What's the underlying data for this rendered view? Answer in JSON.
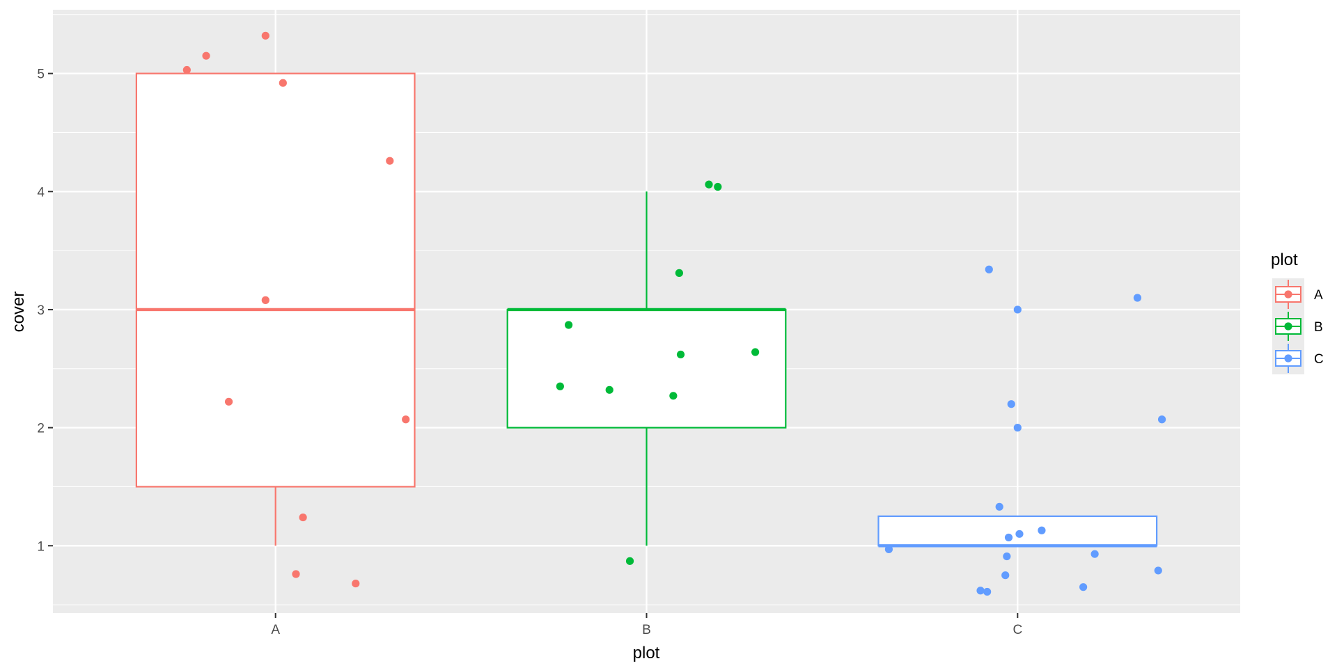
{
  "chart_data": {
    "type": "boxplot",
    "xlabel": "plot",
    "ylabel": "cover",
    "categories": [
      "A",
      "B",
      "C"
    ],
    "ylim": [
      0.43,
      5.54
    ],
    "yticks": [
      1,
      2,
      3,
      4,
      5
    ],
    "grid": true,
    "legend": {
      "title": "plot",
      "position": "right",
      "entries": [
        "A",
        "B",
        "C"
      ]
    },
    "colors": {
      "A": "#F8766D",
      "B": "#00BA38",
      "C": "#619CFF"
    },
    "boxes": [
      {
        "category": "A",
        "lower_whisker": 1,
        "q1": 1.5,
        "median": 3,
        "q3": 5,
        "upper_whisker": 5
      },
      {
        "category": "B",
        "lower_whisker": 1,
        "q1": 2,
        "median": 3,
        "q3": 3,
        "upper_whisker": 4
      },
      {
        "category": "C",
        "lower_whisker": 1,
        "q1": 1,
        "median": 1,
        "q3": 1.25,
        "upper_whisker": 1.25
      }
    ],
    "points": {
      "A": [
        {
          "x": 0.973,
          "y": 5.32
        },
        {
          "x": 0.813,
          "y": 5.15
        },
        {
          "x": 0.761,
          "y": 5.03
        },
        {
          "x": 1.02,
          "y": 4.92
        },
        {
          "x": 1.308,
          "y": 4.26
        },
        {
          "x": 0.973,
          "y": 3.08
        },
        {
          "x": 0.874,
          "y": 2.22
        },
        {
          "x": 1.351,
          "y": 2.07
        },
        {
          "x": 1.074,
          "y": 1.24
        },
        {
          "x": 1.055,
          "y": 0.76
        },
        {
          "x": 1.216,
          "y": 0.68
        }
      ],
      "B": [
        {
          "x": 2.168,
          "y": 4.06
        },
        {
          "x": 2.192,
          "y": 4.04
        },
        {
          "x": 2.088,
          "y": 3.31
        },
        {
          "x": 1.79,
          "y": 2.87
        },
        {
          "x": 2.293,
          "y": 2.64
        },
        {
          "x": 2.092,
          "y": 2.62
        },
        {
          "x": 1.767,
          "y": 2.35
        },
        {
          "x": 1.9,
          "y": 2.32
        },
        {
          "x": 2.072,
          "y": 2.27
        },
        {
          "x": 1.955,
          "y": 0.87
        }
      ],
      "C": [
        {
          "x": 2.923,
          "y": 3.34
        },
        {
          "x": 3.323,
          "y": 3.1
        },
        {
          "x": 3.0,
          "y": 3.0
        },
        {
          "x": 2.983,
          "y": 2.2
        },
        {
          "x": 3.389,
          "y": 2.07
        },
        {
          "x": 3.0,
          "y": 2.0
        },
        {
          "x": 2.951,
          "y": 1.33
        },
        {
          "x": 3.065,
          "y": 1.13
        },
        {
          "x": 3.005,
          "y": 1.1
        },
        {
          "x": 2.976,
          "y": 1.07
        },
        {
          "x": 2.653,
          "y": 0.97
        },
        {
          "x": 3.208,
          "y": 0.93
        },
        {
          "x": 2.971,
          "y": 0.91
        },
        {
          "x": 3.379,
          "y": 0.79
        },
        {
          "x": 2.967,
          "y": 0.75
        },
        {
          "x": 3.177,
          "y": 0.65
        },
        {
          "x": 2.9,
          "y": 0.62
        },
        {
          "x": 2.918,
          "y": 0.61
        }
      ]
    }
  }
}
